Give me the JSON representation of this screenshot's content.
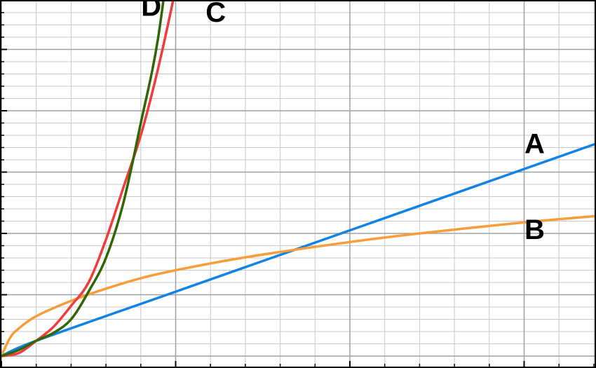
{
  "chart_data": {
    "type": "line",
    "title": "",
    "xlabel": "",
    "ylabel": "",
    "xlim": [
      0,
      17
    ],
    "ylim": [
      0,
      6
    ],
    "grid": {
      "major": true,
      "minor": true,
      "x_major_step": 5,
      "x_minor_step": 1,
      "y_major_step": 1,
      "y_minor_step": 0.2
    },
    "legend": "none",
    "series": [
      {
        "name": "A",
        "color": "#1283e6",
        "x": [
          0,
          1,
          5,
          10,
          15,
          17
        ],
        "y": [
          0.0,
          0.25,
          1.05,
          2.05,
          3.05,
          3.45
        ]
      },
      {
        "name": "B",
        "color": "#f99d3a",
        "x": [
          0,
          0.25,
          0.5,
          1,
          2,
          3,
          4,
          5,
          7,
          10,
          12,
          15,
          17
        ],
        "y": [
          0.0,
          0.3,
          0.45,
          0.65,
          0.9,
          1.1,
          1.27,
          1.4,
          1.61,
          1.86,
          2.0,
          2.18,
          2.28
        ]
      },
      {
        "name": "C",
        "color": "#f03c3c",
        "x": [
          0,
          0.5,
          1,
          1.5,
          2,
          2.5,
          3,
          3.5,
          4,
          4.5,
          5,
          5.4
        ],
        "y": [
          0.0,
          0.05,
          0.25,
          0.48,
          0.82,
          1.2,
          1.9,
          2.75,
          3.6,
          4.7,
          6.0,
          7.2
        ]
      },
      {
        "name": "D",
        "color": "#2f6606",
        "x": [
          0,
          0.5,
          1,
          1.5,
          2,
          2.5,
          3,
          3.5,
          4,
          4.5,
          5
        ],
        "y": [
          0.0,
          0.1,
          0.25,
          0.38,
          0.6,
          1.05,
          1.6,
          2.5,
          3.8,
          5.2,
          7.4
        ]
      }
    ],
    "annotations": [
      {
        "text": "A",
        "x": 15.3,
        "y": 3.46
      },
      {
        "text": "B",
        "x": 15.3,
        "y": 2.06
      },
      {
        "text": "C",
        "x": 6.15,
        "y": 5.6
      },
      {
        "text": "D",
        "x": 4.3,
        "y": 5.7
      }
    ]
  }
}
